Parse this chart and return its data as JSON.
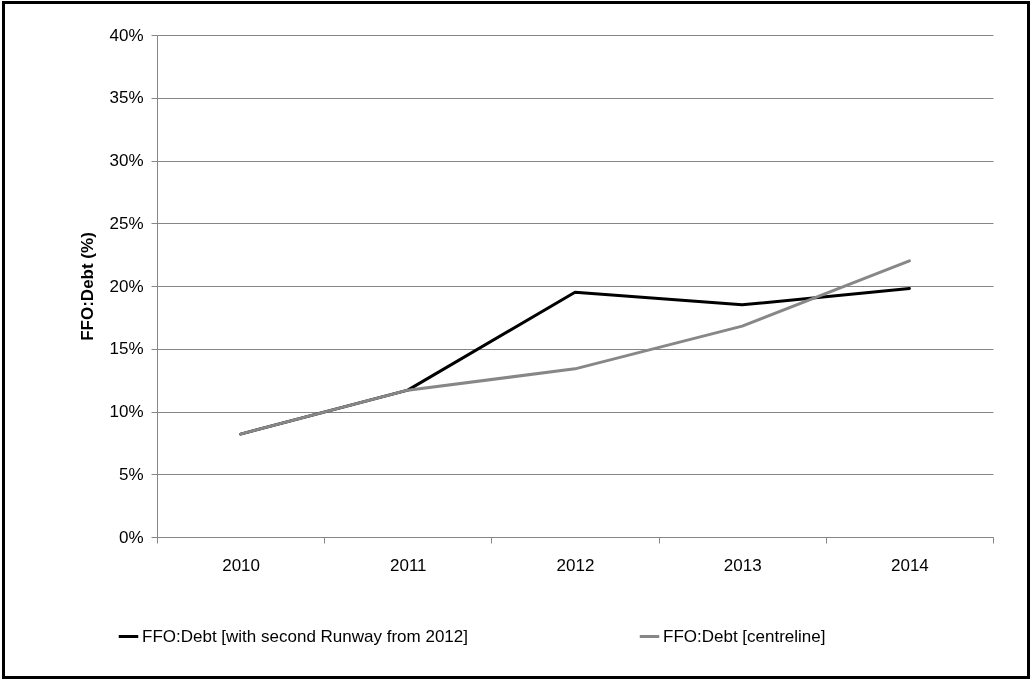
{
  "chart_data": {
    "type": "line",
    "ylabel": "FFO:Debt (%)",
    "categories": [
      "2010",
      "2011",
      "2012",
      "2013",
      "2014"
    ],
    "series": [
      {
        "name": "FFO:Debt [with second Runway from 2012]",
        "color": "#000000",
        "values": [
          8.2,
          11.7,
          19.5,
          18.5,
          19.8
        ]
      },
      {
        "name": "FFO:Debt [centreline]",
        "color": "#878787",
        "values": [
          8.2,
          11.7,
          13.4,
          16.8,
          22.0
        ]
      }
    ],
    "ylim": [
      0,
      40
    ],
    "yticks": [
      {
        "value": 0,
        "label": "0%"
      },
      {
        "value": 5,
        "label": "5%"
      },
      {
        "value": 10,
        "label": "10%"
      },
      {
        "value": 15,
        "label": "15%"
      },
      {
        "value": 20,
        "label": "20%"
      },
      {
        "value": 25,
        "label": "25%"
      },
      {
        "value": 30,
        "label": "30%"
      },
      {
        "value": 35,
        "label": "35%"
      },
      {
        "value": 40,
        "label": "40%"
      }
    ],
    "grid": "y",
    "legend": "bottom"
  }
}
